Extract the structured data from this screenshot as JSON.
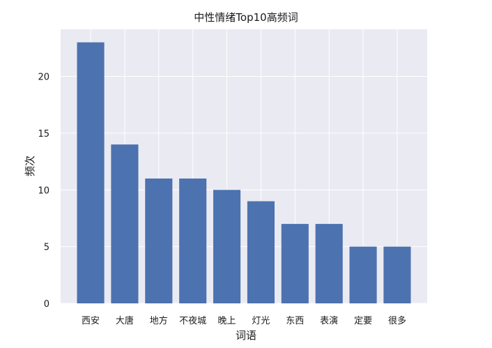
{
  "chart_data": {
    "type": "bar",
    "title": "中性情绪Top10高频词",
    "xlabel": "词语",
    "ylabel": "频次",
    "categories": [
      "西安",
      "大唐",
      "地方",
      "不夜城",
      "晚上",
      "灯光",
      "东西",
      "表演",
      "定要",
      "很多"
    ],
    "values": [
      23,
      14,
      11,
      11,
      10,
      9,
      7,
      7,
      5,
      5
    ],
    "ylim": [
      0,
      24.15
    ],
    "yticks": [
      0,
      5,
      10,
      15,
      20
    ],
    "grid": true,
    "colors": {
      "bar": "#4c72b0",
      "plot_background": "#eaeaf2",
      "grid": "#ffffff"
    }
  }
}
